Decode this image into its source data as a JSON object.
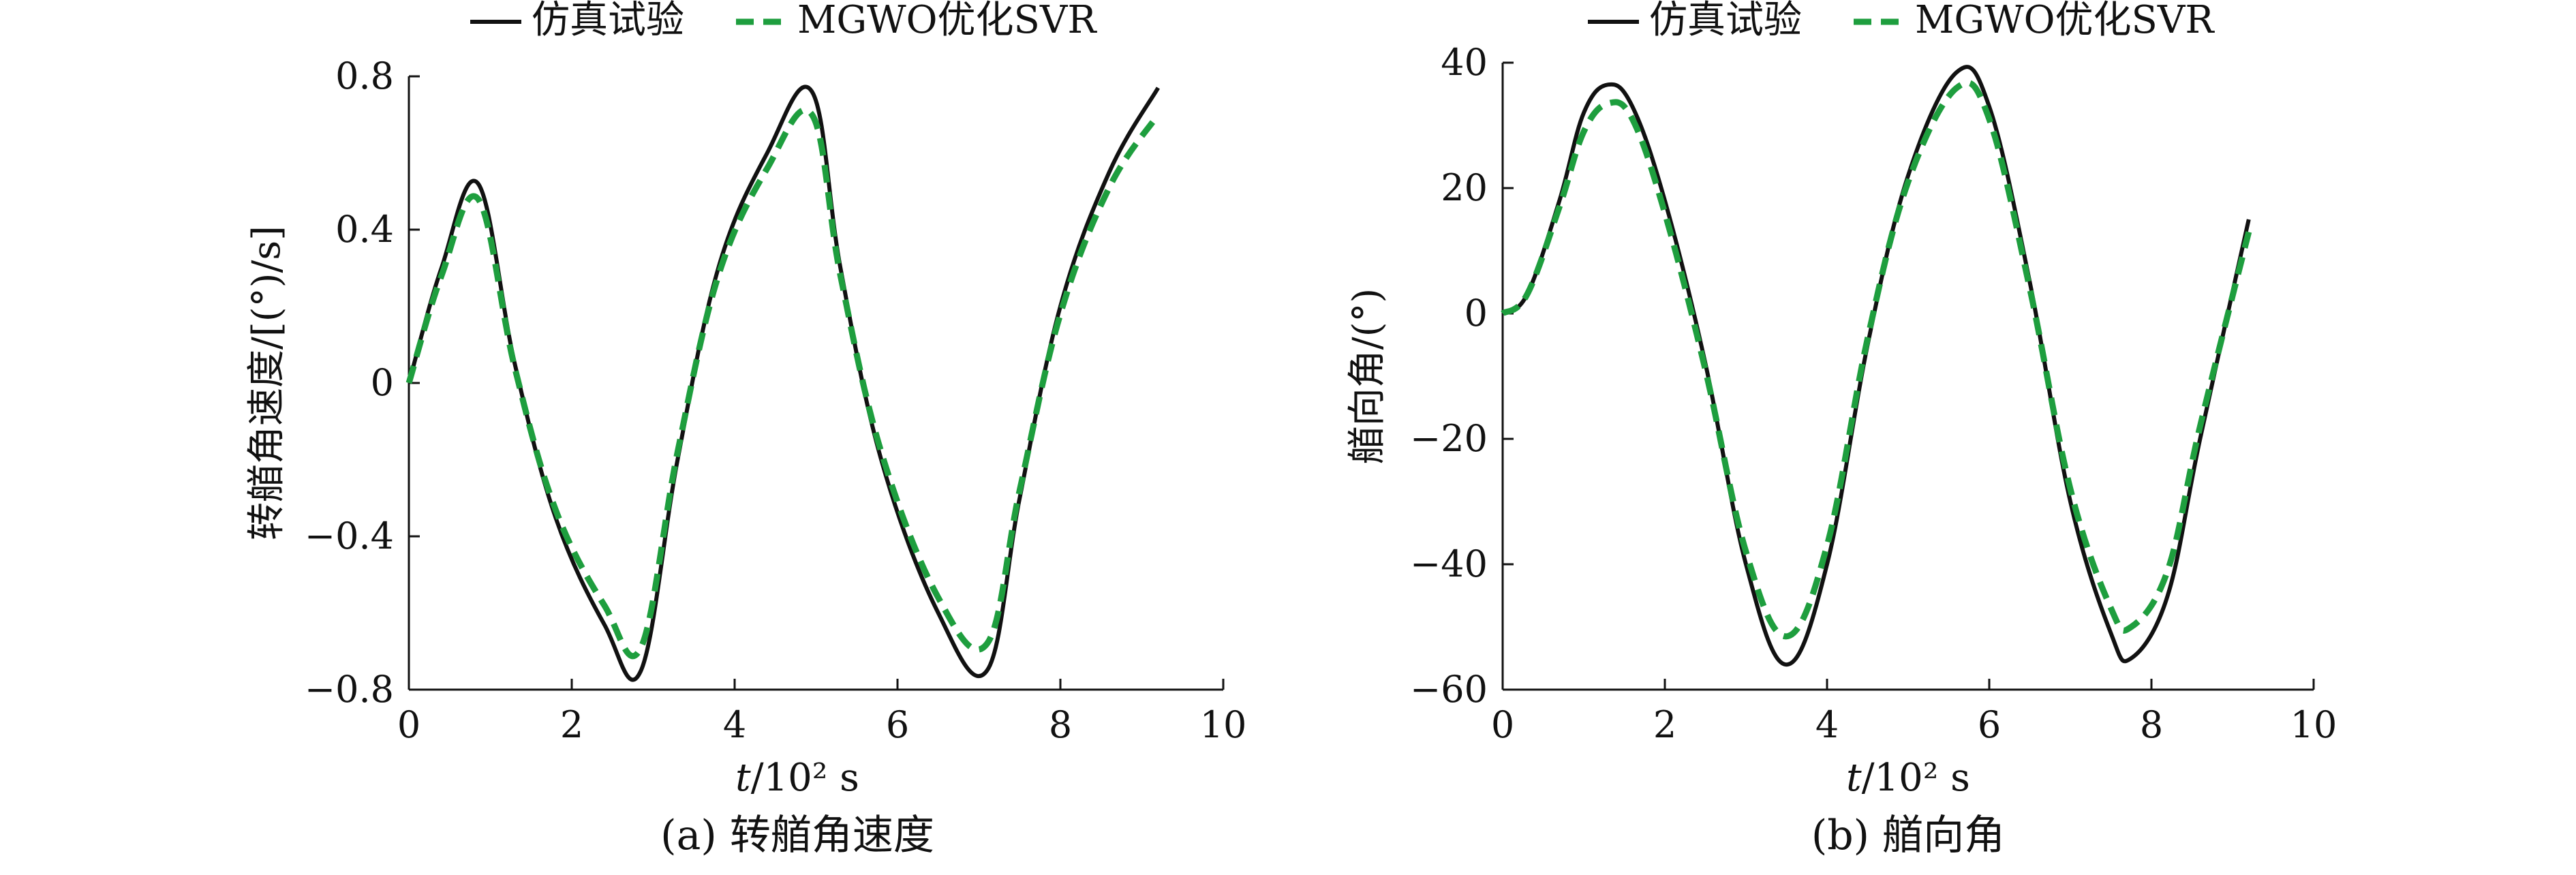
{
  "chart_data": [
    {
      "type": "line",
      "caption": "(a) 转艏角速度",
      "xlabel_var": "t",
      "xlabel_unit": "/10² s",
      "ylabel": "转艏角速度/[(°)/s]",
      "xlim": [
        0,
        10
      ],
      "ylim": [
        -0.8,
        0.8
      ],
      "x_ticks": [
        0,
        2,
        4,
        6,
        8,
        10
      ],
      "x_tick_labels": [
        "0",
        "2",
        "4",
        "6",
        "8",
        "10"
      ],
      "y_ticks": [
        -0.8,
        -0.4,
        0,
        0.4,
        0.8
      ],
      "y_tick_labels": [
        "−0.8",
        "−0.4",
        "0",
        "0.4",
        "0.8"
      ],
      "grid": false,
      "legend_position": "top-center",
      "series": [
        {
          "name": "仿真试验",
          "style": "solid",
          "color": "#111111",
          "points": [
            [
              0,
              0
            ],
            [
              0.4,
              0.3
            ],
            [
              0.85,
              0.52
            ],
            [
              1.3,
              0.05
            ],
            [
              1.8,
              -0.35
            ],
            [
              2.4,
              -0.63
            ],
            [
              2.85,
              -0.75
            ],
            [
              3.3,
              -0.2
            ],
            [
              3.8,
              0.3
            ],
            [
              4.4,
              0.6
            ],
            [
              4.95,
              0.76
            ],
            [
              5.3,
              0.3
            ],
            [
              5.8,
              -0.2
            ],
            [
              6.5,
              -0.6
            ],
            [
              7.1,
              -0.75
            ],
            [
              7.5,
              -0.3
            ],
            [
              8.0,
              0.2
            ],
            [
              8.6,
              0.55
            ],
            [
              9.2,
              0.77
            ]
          ]
        },
        {
          "name": "MGWO优化SVR",
          "style": "dashed",
          "color": "#1e9e3e",
          "points": [
            [
              0,
              0
            ],
            [
              0.4,
              0.28
            ],
            [
              0.85,
              0.48
            ],
            [
              1.3,
              0.04
            ],
            [
              1.8,
              -0.33
            ],
            [
              2.4,
              -0.58
            ],
            [
              2.85,
              -0.69
            ],
            [
              3.3,
              -0.18
            ],
            [
              3.8,
              0.28
            ],
            [
              4.4,
              0.56
            ],
            [
              4.95,
              0.7
            ],
            [
              5.3,
              0.28
            ],
            [
              5.8,
              -0.18
            ],
            [
              6.5,
              -0.56
            ],
            [
              7.1,
              -0.68
            ],
            [
              7.5,
              -0.28
            ],
            [
              8.0,
              0.18
            ],
            [
              8.6,
              0.51
            ],
            [
              9.2,
              0.7
            ]
          ]
        }
      ]
    },
    {
      "type": "line",
      "caption": "(b) 艏向角",
      "xlabel_var": "t",
      "xlabel_unit": "/10² s",
      "ylabel": "艏向角/(°)",
      "xlim": [
        0,
        10
      ],
      "ylim": [
        -60,
        40
      ],
      "x_ticks": [
        0,
        2,
        4,
        6,
        8,
        10
      ],
      "x_tick_labels": [
        "0",
        "2",
        "4",
        "6",
        "8",
        "10"
      ],
      "y_ticks": [
        -60,
        -40,
        -20,
        0,
        20,
        40
      ],
      "y_tick_labels": [
        "−60",
        "−40",
        "−20",
        "0",
        "20",
        "40"
      ],
      "grid": false,
      "legend_position": "top-center",
      "series": [
        {
          "name": "仿真试验",
          "style": "solid",
          "color": "#111111",
          "points": [
            [
              0,
              0
            ],
            [
              0.3,
              3
            ],
            [
              0.7,
              18
            ],
            [
              1.0,
              32
            ],
            [
              1.3,
              36.5
            ],
            [
              1.6,
              33
            ],
            [
              2.0,
              18
            ],
            [
              2.5,
              -8
            ],
            [
              3.0,
              -40
            ],
            [
              3.5,
              -56
            ],
            [
              4.0,
              -40
            ],
            [
              4.5,
              -5
            ],
            [
              5.0,
              22
            ],
            [
              5.6,
              38.5
            ],
            [
              6.0,
              33
            ],
            [
              6.5,
              5
            ],
            [
              7.0,
              -30
            ],
            [
              7.5,
              -51
            ],
            [
              7.75,
              -55
            ],
            [
              8.2,
              -45
            ],
            [
              8.6,
              -20
            ],
            [
              9.2,
              15
            ]
          ]
        },
        {
          "name": "MGWO优化SVR",
          "style": "dashed",
          "color": "#1e9e3e",
          "points": [
            [
              0,
              0
            ],
            [
              0.3,
              3
            ],
            [
              0.7,
              17
            ],
            [
              1.0,
              29
            ],
            [
              1.3,
              33.5
            ],
            [
              1.6,
              31
            ],
            [
              2.0,
              16
            ],
            [
              2.5,
              -9
            ],
            [
              3.0,
              -38
            ],
            [
              3.5,
              -51.5
            ],
            [
              4.0,
              -37
            ],
            [
              4.5,
              -4
            ],
            [
              5.0,
              21
            ],
            [
              5.6,
              36
            ],
            [
              6.0,
              31
            ],
            [
              6.5,
              4
            ],
            [
              7.0,
              -28
            ],
            [
              7.5,
              -47
            ],
            [
              7.75,
              -50
            ],
            [
              8.2,
              -41
            ],
            [
              8.6,
              -18
            ],
            [
              9.2,
              13
            ]
          ]
        }
      ]
    }
  ]
}
